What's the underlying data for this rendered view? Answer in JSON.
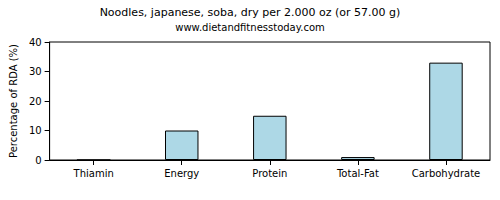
{
  "chart_data": {
    "type": "bar",
    "title": "Noodles, japanese, soba, dry per 2.000 oz (or 57.00 g)",
    "subtitle": "www.dietandfitnesstoday.com",
    "y_label": "Percentage of RDA (%)",
    "categories": [
      "Thiamin",
      "Energy",
      "Protein",
      "Total-Fat",
      "Carbohydrate"
    ],
    "values": [
      0,
      10,
      15,
      1,
      33
    ],
    "color": "#add8e6",
    "ylim": [
      0,
      40
    ],
    "yticks": [
      0,
      10,
      20,
      30,
      40
    ],
    "grid": false
  }
}
